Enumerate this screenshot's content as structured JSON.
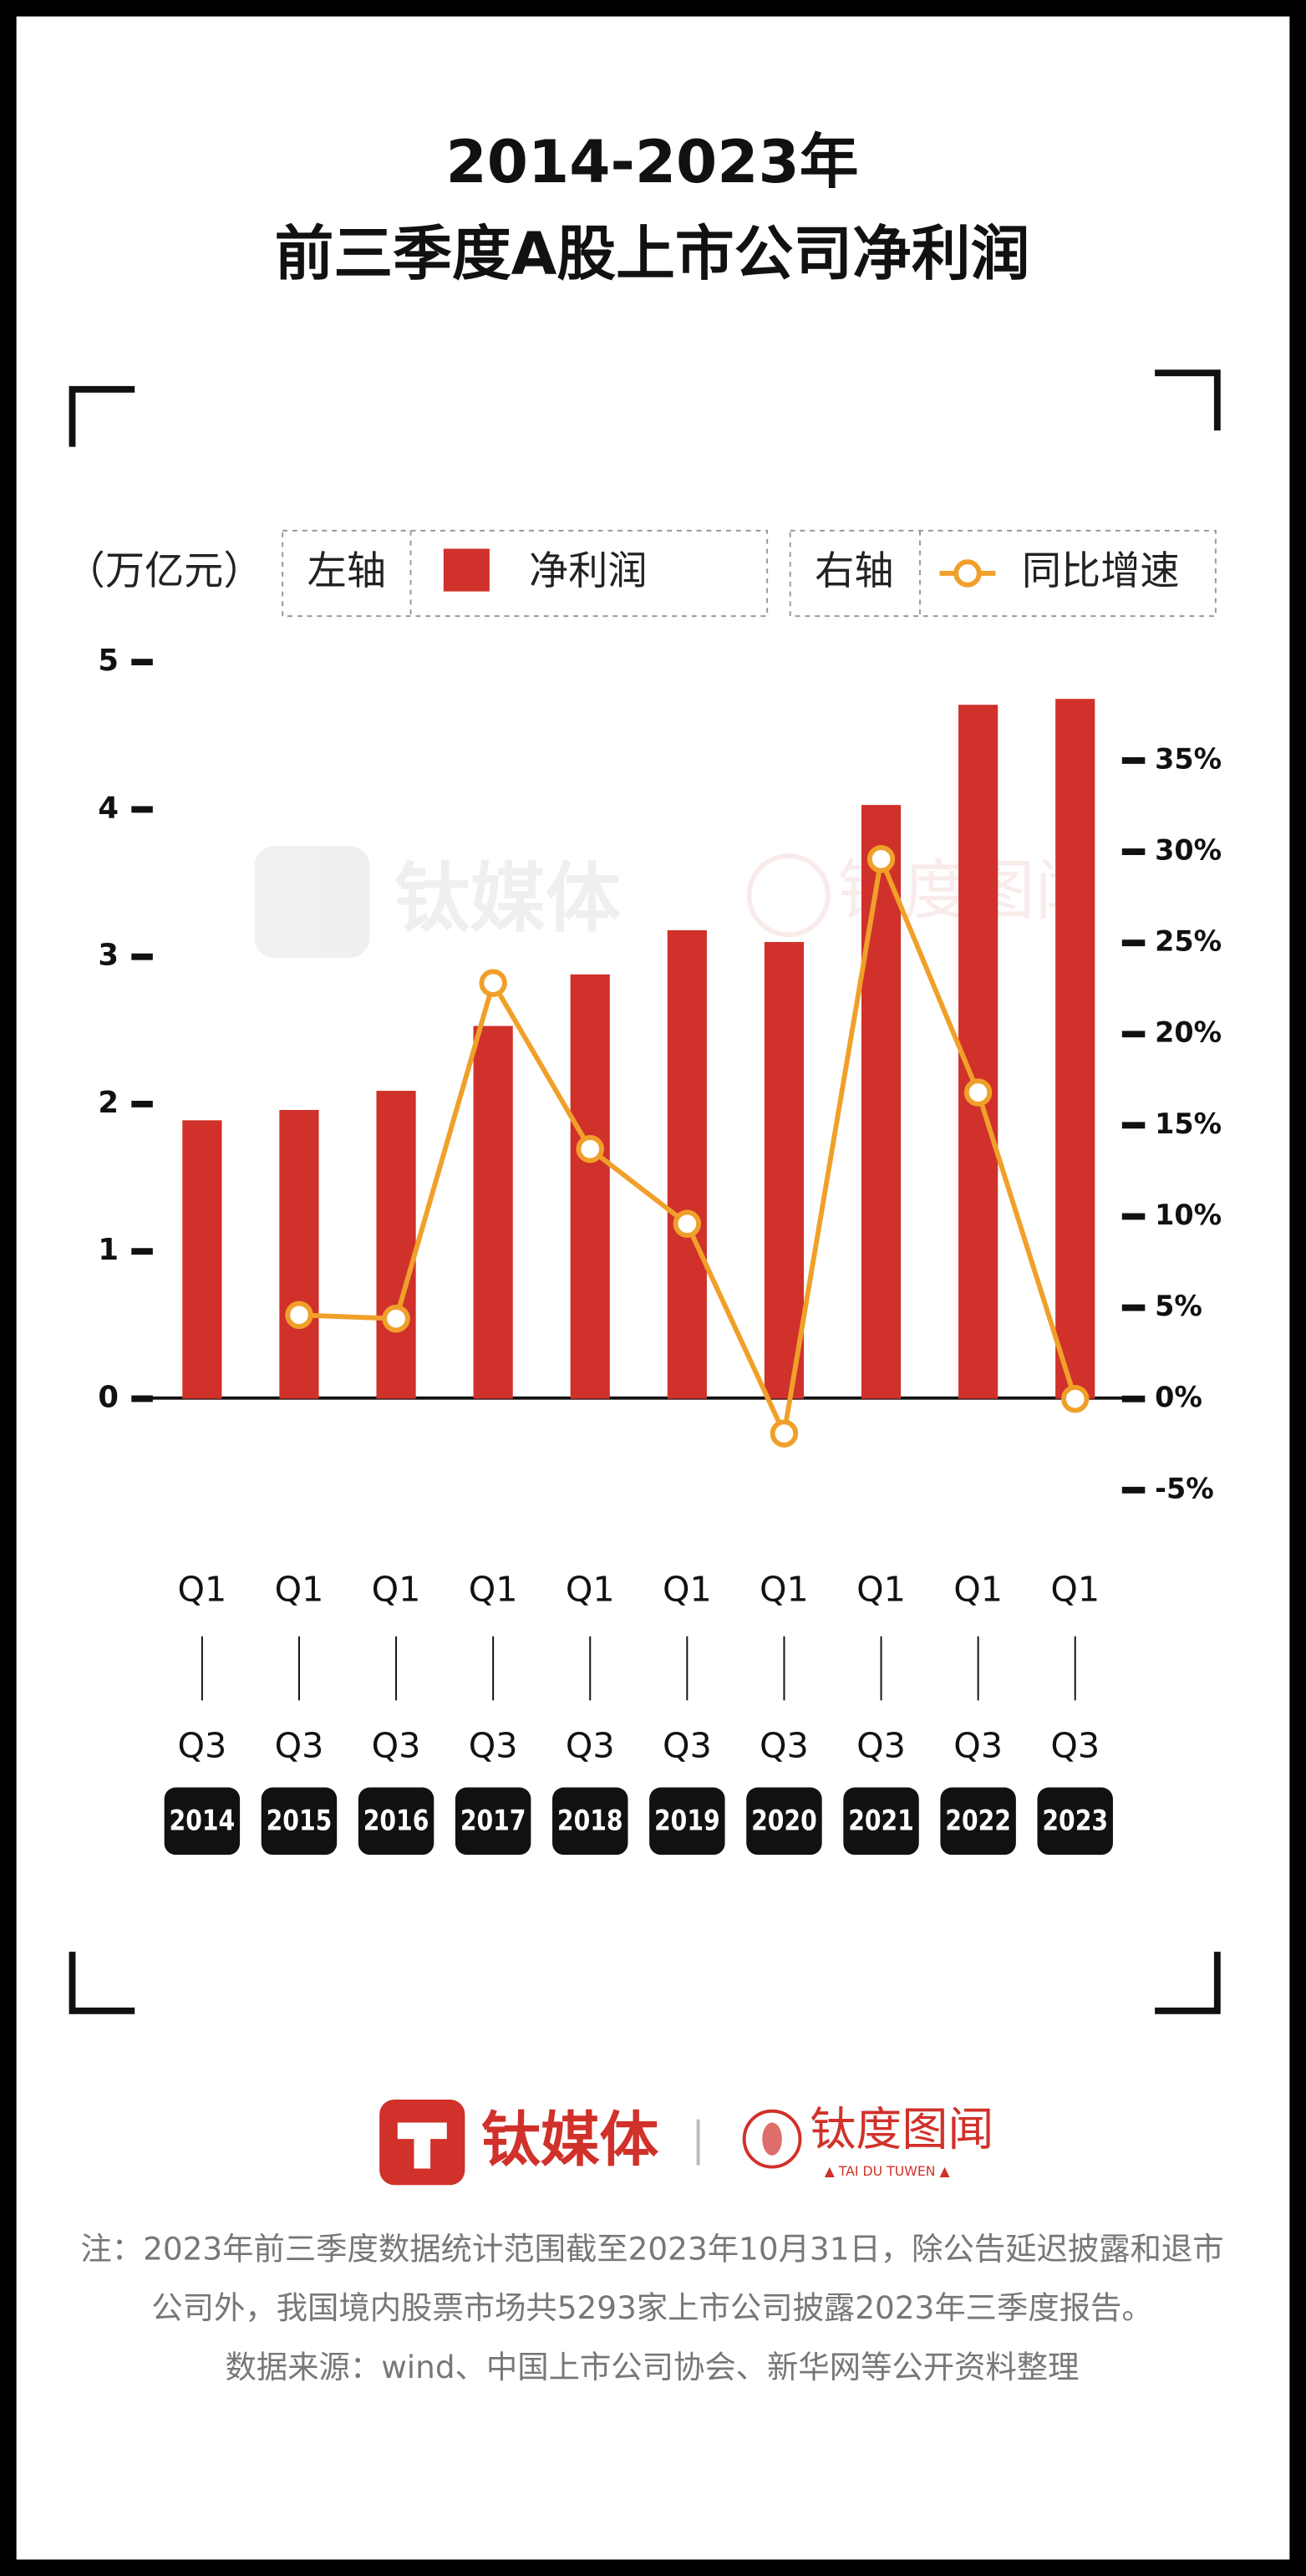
{
  "title_lines": [
    "2014-2023年",
    "前三季度A股上市公司净利润"
  ],
  "chart_data": {
    "type": "bar",
    "ylabel": "（万亿元）",
    "y_axis_legend_label": "左轴",
    "y2_axis_legend_label": "右轴",
    "categories": [
      "2014",
      "2015",
      "2016",
      "2017",
      "2018",
      "2019",
      "2020",
      "2021",
      "2022",
      "2023"
    ],
    "period_start": "Q1",
    "period_end": "Q3",
    "series": [
      {
        "name": "净利润",
        "color": "#d0312a",
        "values": [
          1.89,
          1.96,
          2.09,
          2.53,
          2.88,
          3.18,
          3.1,
          4.03,
          4.71,
          4.75
        ]
      },
      {
        "name": "同比增速",
        "color": "#f0a02a",
        "type": "line",
        "axis": "y2",
        "values": [
          null,
          4.6,
          4.4,
          22.8,
          13.7,
          9.6,
          -1.9,
          29.6,
          16.8,
          0
        ]
      }
    ],
    "ylim": [
      -0.62,
      5
    ],
    "yticks": [
      0,
      1,
      2,
      3,
      4,
      5
    ],
    "y2lim": [
      -5,
      40.4
    ],
    "y2ticks": [
      {
        "value": -5,
        "label": "-5%"
      },
      {
        "value": 0,
        "label": "0%"
      },
      {
        "value": 5,
        "label": "5%"
      },
      {
        "value": 10,
        "label": "10%"
      },
      {
        "value": 15,
        "label": "15%"
      },
      {
        "value": 20,
        "label": "20%"
      },
      {
        "value": 25,
        "label": "25%"
      },
      {
        "value": 30,
        "label": "30%"
      },
      {
        "value": 35,
        "label": "35%"
      }
    ],
    "grid": false
  },
  "branding": {
    "logo_left": "钛媒体",
    "logo_right": "钛度图闻",
    "logo_right_sub": "▲ TAI DU TUWEN ▲"
  },
  "notes": [
    "注：2023年前三季度数据统计范围截至2023年10月31日，除公告延迟披露和退市",
    "公司外，我国境内股票市场共5293家上市公司披露2023年三季度报告。",
    "数据来源：wind、中国上市公司协会、新华网等公开资料整理"
  ]
}
